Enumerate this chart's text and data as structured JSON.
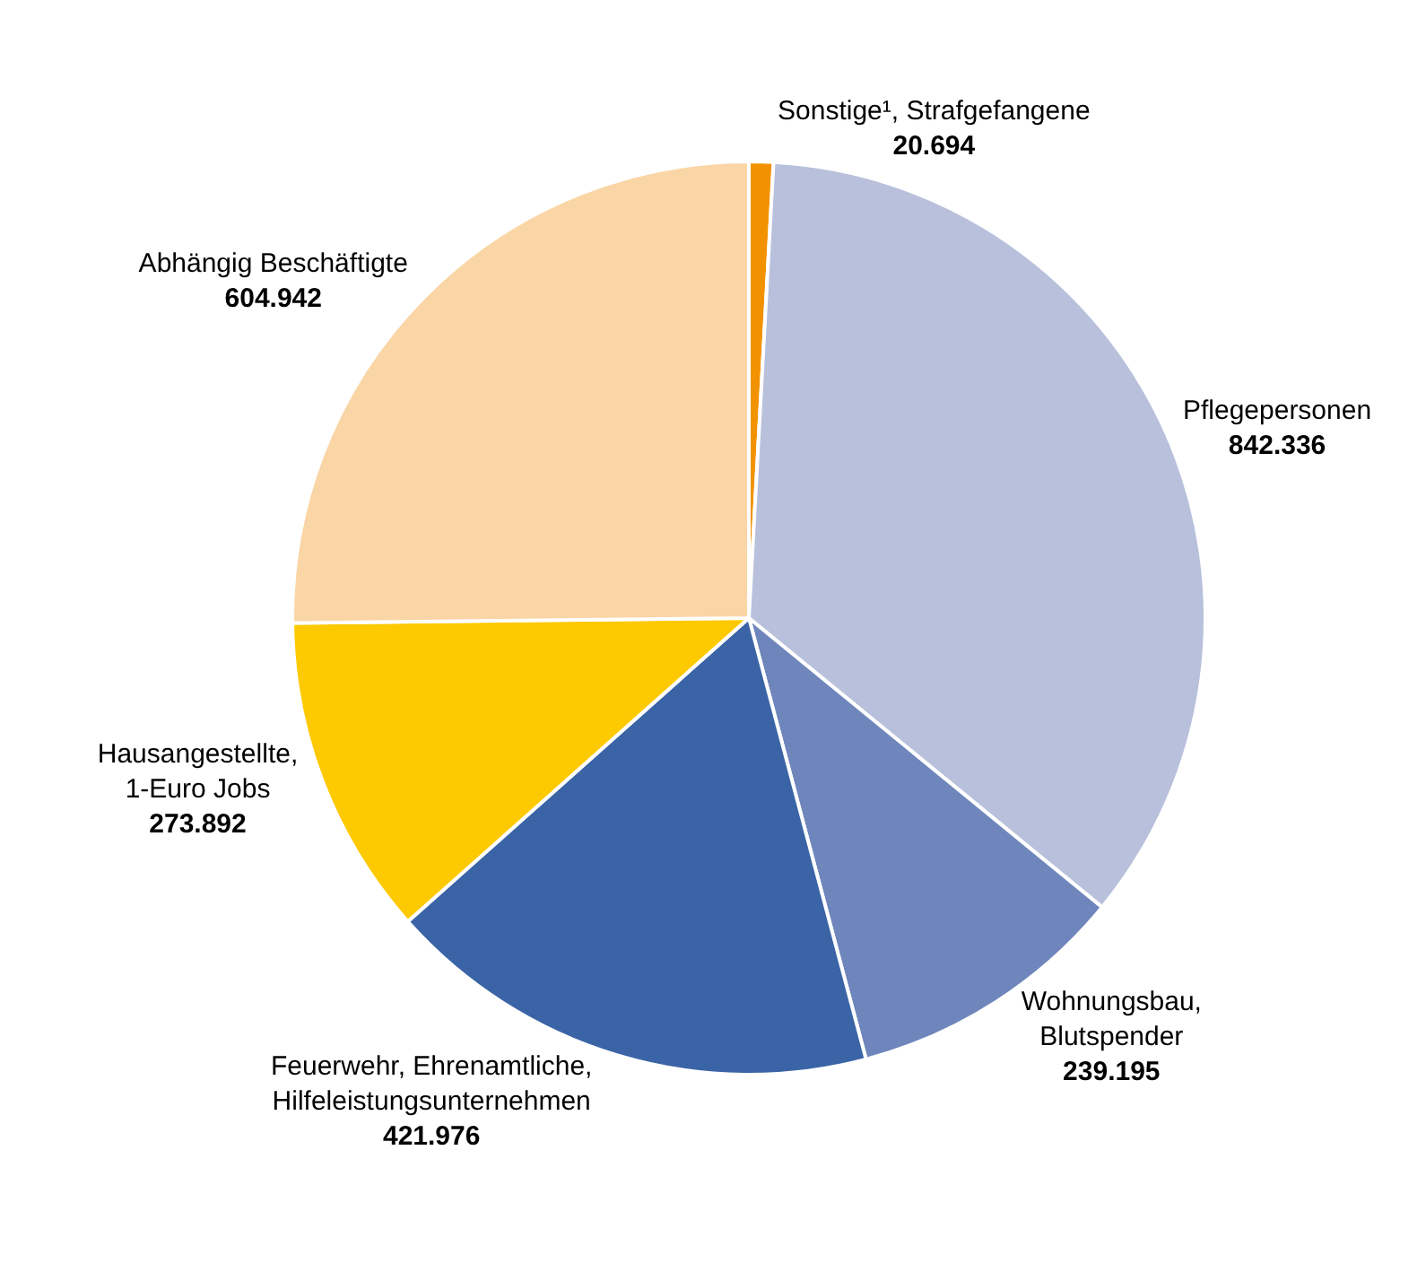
{
  "chart_data": {
    "type": "pie",
    "categories": [
      "Sonstige¹, Strafgefangene",
      "Pflegepersonen",
      "Wohnungsbau,\nBlutspender",
      "Feuerwehr, Ehrenamtliche,\nHilfeleistungsunternehmen",
      "Hausangestellte,\n1-Euro Jobs",
      "Abhängig Beschäftigte"
    ],
    "values": [
      20694,
      842336,
      239195,
      421976,
      273892,
      604942
    ],
    "value_labels": [
      "20.694",
      "842.336",
      "239.195",
      "421.976",
      "273.892",
      "604.942"
    ],
    "colors": [
      "#f39200",
      "#b8c0dc",
      "#6e86bb",
      "#3a64a6",
      "#fdc900",
      "#fad5a5"
    ],
    "legend": false
  }
}
